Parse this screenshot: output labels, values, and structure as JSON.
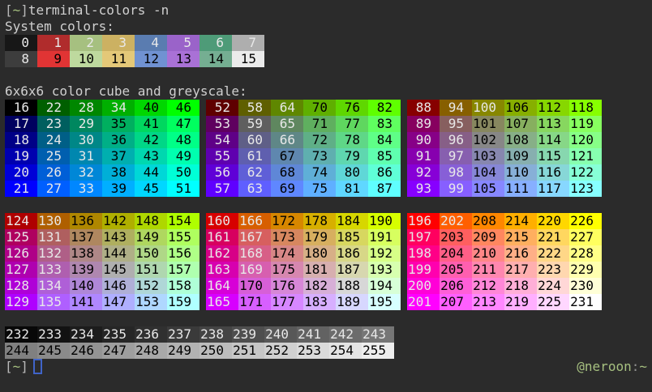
{
  "window": {
    "bg": "#2b2b2b",
    "default_fg": "#d0d0d0"
  },
  "colors": {
    "bracket_fg": "#b9b9b9",
    "path_fg": "#a6c080",
    "colon_fg": "#8f8f8f",
    "cursor_border": "#4064c8",
    "cell_fg_light": "#e8e8e8",
    "cell_fg_dark": "#000000"
  },
  "prompt": {
    "open": "[",
    "path": "~",
    "close": "]"
  },
  "command": "terminal-colors -n",
  "system_colors": {
    "title": "System colors:",
    "rows": [
      {
        "cells": [
          {
            "label": "0",
            "bg": "#171717",
            "fg": "light"
          },
          {
            "label": "1",
            "bg": "#b02c2c",
            "fg": "light"
          },
          {
            "label": "2",
            "bg": "#a6c080",
            "fg": "light"
          },
          {
            "label": "3",
            "bg": "#ccb162",
            "fg": "light"
          },
          {
            "label": "4",
            "bg": "#5a7cb0",
            "fg": "light"
          },
          {
            "label": "5",
            "bg": "#9a63c9",
            "fg": "light"
          },
          {
            "label": "6",
            "bg": "#4e9b78",
            "fg": "light"
          },
          {
            "label": "7",
            "bg": "#aeaeae",
            "fg": "light"
          }
        ]
      },
      {
        "cells": [
          {
            "label": "8",
            "bg": "#3d3d3d",
            "fg": "light"
          },
          {
            "label": "9",
            "bg": "#e13434",
            "fg": "dark"
          },
          {
            "label": "10",
            "bg": "#bed99e",
            "fg": "dark"
          },
          {
            "label": "11",
            "bg": "#e4c878",
            "fg": "dark"
          },
          {
            "label": "12",
            "bg": "#7092d2",
            "fg": "dark"
          },
          {
            "label": "13",
            "bg": "#a971d6",
            "fg": "dark"
          },
          {
            "label": "14",
            "bg": "#75ae92",
            "fg": "dark"
          },
          {
            "label": "15",
            "bg": "#ebebeb",
            "fg": "dark"
          }
        ]
      }
    ]
  },
  "cube": {
    "title": "6x6x6 color cube and greyscale:",
    "levels": [
      0,
      95,
      135,
      175,
      215,
      255
    ],
    "blocks": [
      {
        "rows": [
          [
            16,
            22,
            28,
            34,
            40,
            46
          ],
          [
            17,
            23,
            29,
            35,
            41,
            47
          ],
          [
            18,
            24,
            30,
            36,
            42,
            48
          ],
          [
            19,
            25,
            31,
            37,
            43,
            49
          ],
          [
            20,
            26,
            32,
            38,
            44,
            50
          ],
          [
            21,
            27,
            33,
            39,
            45,
            51
          ]
        ]
      },
      {
        "rows": [
          [
            52,
            58,
            64,
            70,
            76,
            82
          ],
          [
            53,
            59,
            65,
            71,
            77,
            83
          ],
          [
            54,
            60,
            66,
            72,
            78,
            84
          ],
          [
            55,
            61,
            67,
            73,
            79,
            85
          ],
          [
            56,
            62,
            68,
            74,
            80,
            86
          ],
          [
            57,
            63,
            69,
            75,
            81,
            87
          ]
        ]
      },
      {
        "rows": [
          [
            88,
            94,
            100,
            106,
            112,
            118
          ],
          [
            89,
            95,
            101,
            107,
            113,
            119
          ],
          [
            90,
            96,
            102,
            108,
            114,
            120
          ],
          [
            91,
            97,
            103,
            109,
            115,
            121
          ],
          [
            92,
            98,
            104,
            110,
            116,
            122
          ],
          [
            93,
            99,
            105,
            111,
            117,
            123
          ]
        ]
      },
      {
        "rows": [
          [
            124,
            130,
            136,
            142,
            148,
            154
          ],
          [
            125,
            131,
            137,
            143,
            149,
            155
          ],
          [
            126,
            132,
            138,
            144,
            150,
            156
          ],
          [
            127,
            133,
            139,
            145,
            151,
            157
          ],
          [
            128,
            134,
            140,
            146,
            152,
            158
          ],
          [
            129,
            135,
            141,
            147,
            153,
            159
          ]
        ]
      },
      {
        "rows": [
          [
            160,
            166,
            172,
            178,
            184,
            190
          ],
          [
            161,
            167,
            173,
            179,
            185,
            191
          ],
          [
            162,
            168,
            174,
            180,
            186,
            192
          ],
          [
            163,
            169,
            175,
            181,
            187,
            193
          ],
          [
            164,
            170,
            176,
            182,
            188,
            194
          ],
          [
            165,
            171,
            177,
            183,
            189,
            195
          ]
        ]
      },
      {
        "rows": [
          [
            196,
            202,
            208,
            214,
            220,
            226
          ],
          [
            197,
            203,
            209,
            215,
            221,
            227
          ],
          [
            198,
            204,
            210,
            216,
            222,
            228
          ],
          [
            199,
            205,
            211,
            217,
            223,
            229
          ],
          [
            200,
            206,
            212,
            218,
            224,
            230
          ],
          [
            201,
            207,
            213,
            219,
            225,
            231
          ]
        ]
      }
    ]
  },
  "greyscale": {
    "grey_start": 8,
    "grey_step": 10,
    "rows": [
      [
        232,
        233,
        234,
        235,
        236,
        237,
        238,
        239,
        240,
        241,
        242,
        243
      ],
      [
        244,
        245,
        246,
        247,
        248,
        249,
        250,
        251,
        252,
        253,
        254,
        255
      ]
    ]
  },
  "right_prompt": {
    "user": "@neroon",
    "colon": ":",
    "path": "~"
  }
}
